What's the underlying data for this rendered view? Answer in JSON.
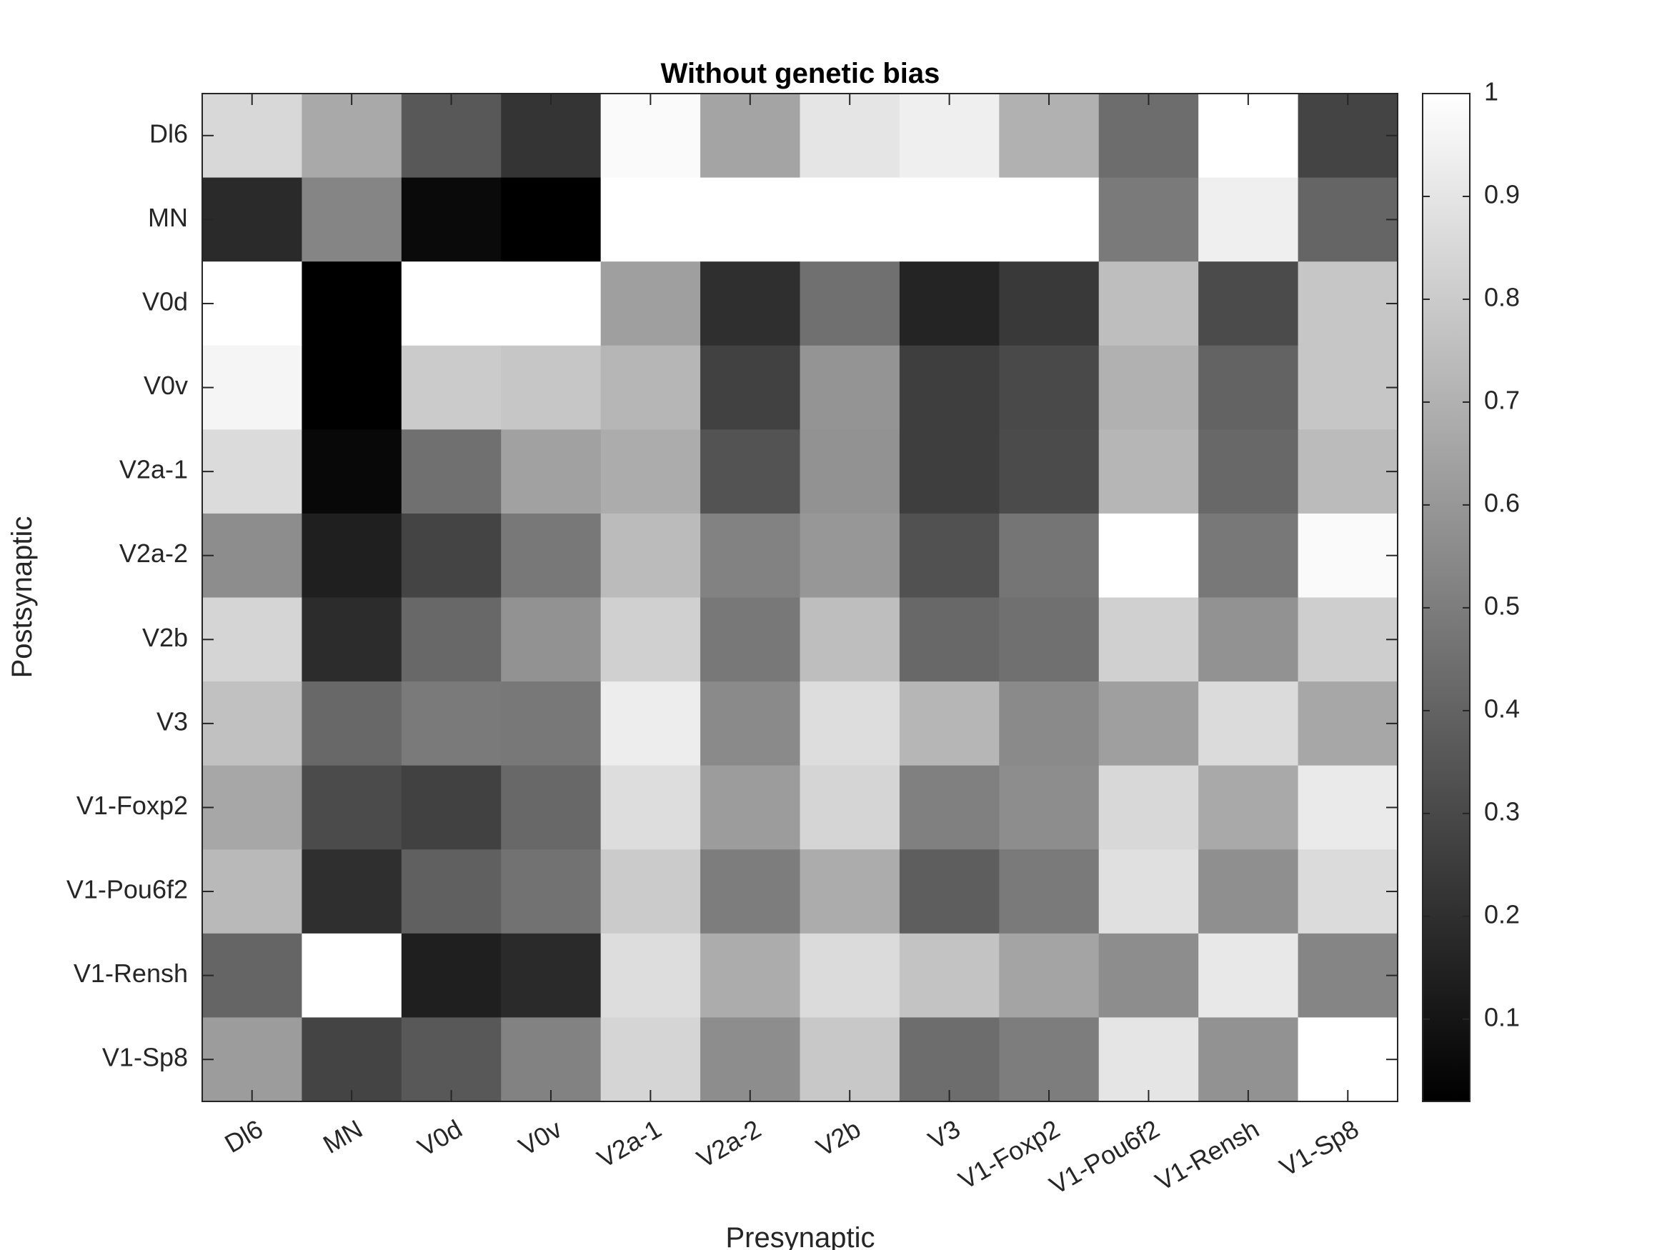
{
  "chart_data": {
    "type": "heatmap",
    "title": "Without genetic bias",
    "xlabel": "Presynaptic",
    "ylabel": "Postsynaptic",
    "x_categories": [
      "Dl6",
      "MN",
      "V0d",
      "V0v",
      "V2a-1",
      "V2a-2",
      "V2b",
      "V3",
      "V1-Foxp2",
      "V1-Pou6f2",
      "V1-Rensh",
      "V1-Sp8"
    ],
    "y_categories": [
      "Dl6",
      "MN",
      "V0d",
      "V0v",
      "V2a-1",
      "V2a-2",
      "V2b",
      "V3",
      "V1-Foxp2",
      "V1-Pou6f2",
      "V1-Rensh",
      "V1-Sp8"
    ],
    "colormap": "gray",
    "clim": [
      0.02,
      1
    ],
    "colorbar_ticks": [
      "0.1",
      "0.2",
      "0.3",
      "0.4",
      "0.5",
      "0.6",
      "0.7",
      "0.8",
      "0.9",
      "1"
    ],
    "values": [
      [
        0.85,
        0.67,
        0.36,
        0.22,
        0.98,
        0.65,
        0.9,
        0.94,
        0.7,
        0.44,
        1.0,
        0.28
      ],
      [
        0.18,
        0.53,
        0.06,
        0.02,
        1.0,
        1.0,
        1.0,
        1.0,
        1.0,
        0.49,
        0.94,
        0.41
      ],
      [
        1.0,
        0.02,
        1.0,
        1.0,
        0.63,
        0.2,
        0.45,
        0.16,
        0.24,
        0.75,
        0.31,
        0.78
      ],
      [
        0.96,
        0.02,
        0.8,
        0.78,
        0.72,
        0.27,
        0.59,
        0.26,
        0.3,
        0.7,
        0.4,
        0.78
      ],
      [
        0.86,
        0.05,
        0.45,
        0.64,
        0.68,
        0.34,
        0.58,
        0.26,
        0.31,
        0.72,
        0.42,
        0.74
      ],
      [
        0.56,
        0.14,
        0.28,
        0.48,
        0.74,
        0.52,
        0.6,
        0.33,
        0.47,
        1.0,
        0.48,
        0.98
      ],
      [
        0.84,
        0.19,
        0.42,
        0.58,
        0.82,
        0.48,
        0.75,
        0.42,
        0.45,
        0.82,
        0.58,
        0.81
      ],
      [
        0.76,
        0.42,
        0.49,
        0.48,
        0.93,
        0.55,
        0.87,
        0.72,
        0.55,
        0.63,
        0.86,
        0.66
      ],
      [
        0.66,
        0.31,
        0.27,
        0.42,
        0.87,
        0.62,
        0.84,
        0.51,
        0.56,
        0.85,
        0.67,
        0.92
      ],
      [
        0.73,
        0.2,
        0.39,
        0.46,
        0.8,
        0.5,
        0.68,
        0.38,
        0.49,
        0.88,
        0.57,
        0.86
      ],
      [
        0.41,
        1.0,
        0.14,
        0.18,
        0.87,
        0.68,
        0.86,
        0.77,
        0.65,
        0.56,
        0.91,
        0.53
      ],
      [
        0.62,
        0.28,
        0.36,
        0.52,
        0.84,
        0.56,
        0.79,
        0.44,
        0.5,
        0.9,
        0.58,
        1.0
      ]
    ]
  }
}
